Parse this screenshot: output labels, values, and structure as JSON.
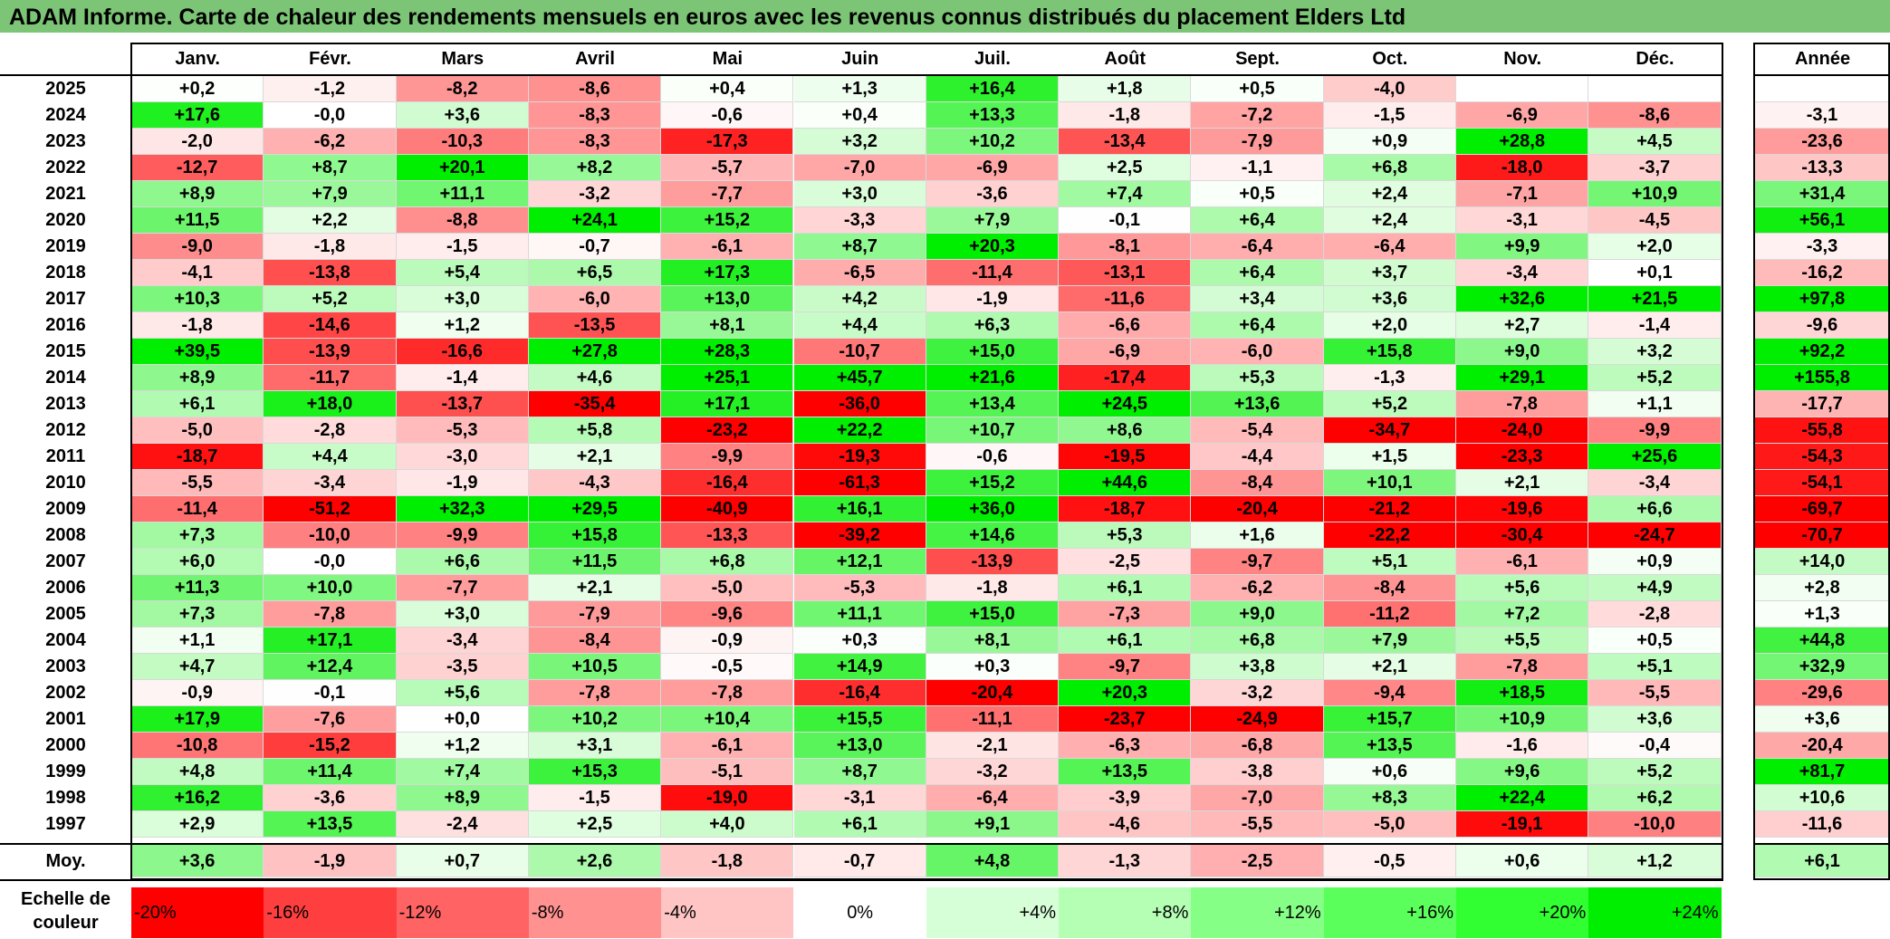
{
  "title": "ADAM Informe. Carte de chaleur des rendements mensuels en euros avec les revenus connus distribués du placement Elders Ltd",
  "chart_data": {
    "type": "heatmap",
    "months": [
      "Janv.",
      "Févr.",
      "Mars",
      "Avril",
      "Mai",
      "Juin",
      "Juil.",
      "Août",
      "Sept.",
      "Oct.",
      "Nov.",
      "Déc."
    ],
    "annual_header": "Année",
    "rows": [
      {
        "year": "2025",
        "months": [
          "+0,2",
          "-1,2",
          "-8,2",
          "-8,6",
          "+0,4",
          "+1,3",
          "+16,4",
          "+1,8",
          "+0,5",
          "-4,0",
          "",
          ""
        ],
        "annual": ""
      },
      {
        "year": "2024",
        "months": [
          "+17,6",
          "-0,0",
          "+3,6",
          "-8,3",
          "-0,6",
          "+0,4",
          "+13,3",
          "-1,8",
          "-7,2",
          "-1,5",
          "-6,9",
          "-8,6"
        ],
        "annual": "-3,1"
      },
      {
        "year": "2023",
        "months": [
          "-2,0",
          "-6,2",
          "-10,3",
          "-8,3",
          "-17,3",
          "+3,2",
          "+10,2",
          "-13,4",
          "-7,9",
          "+0,9",
          "+28,8",
          "+4,5"
        ],
        "annual": "-23,6"
      },
      {
        "year": "2022",
        "months": [
          "-12,7",
          "+8,7",
          "+20,1",
          "+8,2",
          "-5,7",
          "-7,0",
          "-6,9",
          "+2,5",
          "-1,1",
          "+6,8",
          "-18,0",
          "-3,7"
        ],
        "annual": "-13,3"
      },
      {
        "year": "2021",
        "months": [
          "+8,9",
          "+7,9",
          "+11,1",
          "-3,2",
          "-7,7",
          "+3,0",
          "-3,6",
          "+7,4",
          "+0,5",
          "+2,4",
          "-7,1",
          "+10,9"
        ],
        "annual": "+31,4"
      },
      {
        "year": "2020",
        "months": [
          "+11,5",
          "+2,2",
          "-8,8",
          "+24,1",
          "+15,2",
          "-3,3",
          "+7,9",
          "-0,1",
          "+6,4",
          "+2,4",
          "-3,1",
          "-4,5"
        ],
        "annual": "+56,1"
      },
      {
        "year": "2019",
        "months": [
          "-9,0",
          "-1,8",
          "-1,5",
          "-0,7",
          "-6,1",
          "+8,7",
          "+20,3",
          "-8,1",
          "-6,4",
          "-6,4",
          "+9,9",
          "+2,0"
        ],
        "annual": "-3,3"
      },
      {
        "year": "2018",
        "months": [
          "-4,1",
          "-13,8",
          "+5,4",
          "+6,5",
          "+17,3",
          "-6,5",
          "-11,4",
          "-13,1",
          "+6,4",
          "+3,7",
          "-3,4",
          "+0,1"
        ],
        "annual": "-16,2"
      },
      {
        "year": "2017",
        "months": [
          "+10,3",
          "+5,2",
          "+3,0",
          "-6,0",
          "+13,0",
          "+4,2",
          "-1,9",
          "-11,6",
          "+3,4",
          "+3,6",
          "+32,6",
          "+21,5"
        ],
        "annual": "+97,8"
      },
      {
        "year": "2016",
        "months": [
          "-1,8",
          "-14,6",
          "+1,2",
          "-13,5",
          "+8,1",
          "+4,4",
          "+6,3",
          "-6,6",
          "+6,4",
          "+2,0",
          "+2,7",
          "-1,4"
        ],
        "annual": "-9,6"
      },
      {
        "year": "2015",
        "months": [
          "+39,5",
          "-13,9",
          "-16,6",
          "+27,8",
          "+28,3",
          "-10,7",
          "+15,0",
          "-6,9",
          "-6,0",
          "+15,8",
          "+9,0",
          "+3,2"
        ],
        "annual": "+92,2"
      },
      {
        "year": "2014",
        "months": [
          "+8,9",
          "-11,7",
          "-1,4",
          "+4,6",
          "+25,1",
          "+45,7",
          "+21,6",
          "-17,4",
          "+5,3",
          "-1,3",
          "+29,1",
          "+5,2"
        ],
        "annual": "+155,8"
      },
      {
        "year": "2013",
        "months": [
          "+6,1",
          "+18,0",
          "-13,7",
          "-35,4",
          "+17,1",
          "-36,0",
          "+13,4",
          "+24,5",
          "+13,6",
          "+5,2",
          "-7,8",
          "+1,1"
        ],
        "annual": "-17,7"
      },
      {
        "year": "2012",
        "months": [
          "-5,0",
          "-2,8",
          "-5,3",
          "+5,8",
          "-23,2",
          "+22,2",
          "+10,7",
          "+8,6",
          "-5,4",
          "-34,7",
          "-24,0",
          "-9,9"
        ],
        "annual": "-55,8"
      },
      {
        "year": "2011",
        "months": [
          "-18,7",
          "+4,4",
          "-3,0",
          "+2,1",
          "-9,9",
          "-19,3",
          "-0,6",
          "-19,5",
          "-4,4",
          "+1,5",
          "-23,3",
          "+25,6"
        ],
        "annual": "-54,3"
      },
      {
        "year": "2010",
        "months": [
          "-5,5",
          "-3,4",
          "-1,9",
          "-4,3",
          "-16,4",
          "-61,3",
          "+15,2",
          "+44,6",
          "-8,4",
          "+10,1",
          "+2,1",
          "-3,4"
        ],
        "annual": "-54,1"
      },
      {
        "year": "2009",
        "months": [
          "-11,4",
          "-51,2",
          "+32,3",
          "+29,5",
          "-40,9",
          "+16,1",
          "+36,0",
          "-18,7",
          "-20,4",
          "-21,2",
          "-19,6",
          "+6,6"
        ],
        "annual": "-69,7"
      },
      {
        "year": "2008",
        "months": [
          "+7,3",
          "-10,0",
          "-9,9",
          "+15,8",
          "-13,3",
          "-39,2",
          "+14,6",
          "+5,3",
          "+1,6",
          "-22,2",
          "-30,4",
          "-24,7"
        ],
        "annual": "-70,7"
      },
      {
        "year": "2007",
        "months": [
          "+6,0",
          "-0,0",
          "+6,6",
          "+11,5",
          "+6,8",
          "+12,1",
          "-13,9",
          "-2,5",
          "-9,7",
          "+5,1",
          "-6,1",
          "+0,9"
        ],
        "annual": "+14,0"
      },
      {
        "year": "2006",
        "months": [
          "+11,3",
          "+10,0",
          "-7,7",
          "+2,1",
          "-5,0",
          "-5,3",
          "-1,8",
          "+6,1",
          "-6,2",
          "-8,4",
          "+5,6",
          "+4,9"
        ],
        "annual": "+2,8"
      },
      {
        "year": "2005",
        "months": [
          "+7,3",
          "-7,8",
          "+3,0",
          "-7,9",
          "-9,6",
          "+11,1",
          "+15,0",
          "-7,3",
          "+9,0",
          "-11,2",
          "+7,2",
          "-2,8"
        ],
        "annual": "+1,3"
      },
      {
        "year": "2004",
        "months": [
          "+1,1",
          "+17,1",
          "-3,4",
          "-8,4",
          "-0,9",
          "+0,3",
          "+8,1",
          "+6,1",
          "+6,8",
          "+7,9",
          "+5,5",
          "+0,5"
        ],
        "annual": "+44,8"
      },
      {
        "year": "2003",
        "months": [
          "+4,7",
          "+12,4",
          "-3,5",
          "+10,5",
          "-0,5",
          "+14,9",
          "+0,3",
          "-9,7",
          "+3,8",
          "+2,1",
          "-7,8",
          "+5,1"
        ],
        "annual": "+32,9"
      },
      {
        "year": "2002",
        "months": [
          "-0,9",
          "-0,1",
          "+5,6",
          "-7,8",
          "-7,8",
          "-16,4",
          "-20,4",
          "+20,3",
          "-3,2",
          "-9,4",
          "+18,5",
          "-5,5"
        ],
        "annual": "-29,6"
      },
      {
        "year": "2001",
        "months": [
          "+17,9",
          "-7,6",
          "+0,0",
          "+10,2",
          "+10,4",
          "+15,5",
          "-11,1",
          "-23,7",
          "-24,9",
          "+15,7",
          "+10,9",
          "+3,6"
        ],
        "annual": "+3,6"
      },
      {
        "year": "2000",
        "months": [
          "-10,8",
          "-15,2",
          "+1,2",
          "+3,1",
          "-6,1",
          "+13,0",
          "-2,1",
          "-6,3",
          "-6,8",
          "+13,5",
          "-1,6",
          "-0,4"
        ],
        "annual": "-20,4"
      },
      {
        "year": "1999",
        "months": [
          "+4,8",
          "+11,4",
          "+7,4",
          "+15,3",
          "-5,1",
          "+8,7",
          "-3,2",
          "+13,5",
          "-3,8",
          "+0,6",
          "+9,6",
          "+5,2"
        ],
        "annual": "+81,7"
      },
      {
        "year": "1998",
        "months": [
          "+16,2",
          "-3,6",
          "+8,9",
          "-1,5",
          "-19,0",
          "-3,1",
          "-6,4",
          "-3,9",
          "-7,0",
          "+8,3",
          "+22,4",
          "+6,2"
        ],
        "annual": "+10,6"
      },
      {
        "year": "1997",
        "months": [
          "+2,9",
          "+13,5",
          "-2,4",
          "+2,5",
          "+4,0",
          "+6,1",
          "+9,1",
          "-4,6",
          "-5,5",
          "-5,0",
          "-19,1",
          "-10,0"
        ],
        "annual": "-11,6"
      }
    ],
    "average": {
      "label": "Moy.",
      "months": [
        "+3,6",
        "-1,9",
        "+0,7",
        "+2,6",
        "-1,8",
        "-0,7",
        "+4,8",
        "-1,3",
        "-2,5",
        "-0,5",
        "+0,6",
        "+1,2"
      ],
      "annual": "+6,1"
    },
    "scale": {
      "label": "Echelle de couleur",
      "steps": [
        "-20%",
        "-16%",
        "-12%",
        "-8%",
        "-4%",
        "0%",
        "+4%",
        "+8%",
        "+12%",
        "+16%",
        "+20%",
        "+24%"
      ],
      "colors": [
        "#ff0000",
        "#ff3f3f",
        "#ff6363",
        "#ff9191",
        "#ffc4c4",
        "#ffffff",
        "#d7ffd7",
        "#b5ffb5",
        "#86ff86",
        "#5bff5b",
        "#32ff32",
        "#00ee00"
      ]
    }
  }
}
